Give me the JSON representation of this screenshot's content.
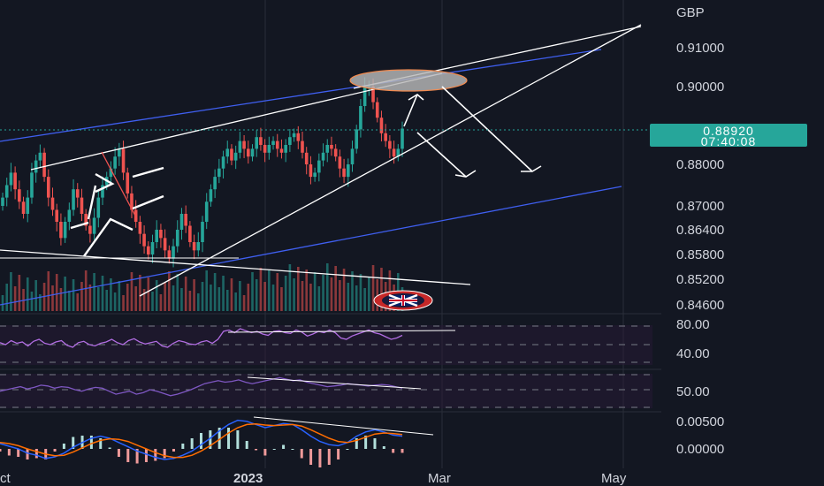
{
  "chart_data": [
    {
      "type": "candlestick",
      "panel": "price",
      "currency": "GBP",
      "y_ticks": [
        0.91,
        0.9,
        0.88,
        0.87,
        0.864,
        0.858,
        0.852,
        0.846
      ],
      "y_tick_labels": [
        "0.91000",
        "0.90000",
        "0.88000",
        "0.87000",
        "0.86400",
        "0.85800",
        "0.85200",
        "0.84600"
      ],
      "last_price": "0.88920",
      "countdown": "07:40:08",
      "x_tick_labels": [
        "ct",
        "2023",
        "Mar",
        "May"
      ],
      "colors": {
        "up": "#26a69a",
        "down": "#ef5350",
        "trendline": "#ffffff",
        "channel": "#3f5ff0",
        "target_zone": "#b8b8b8",
        "target_border": "#f08a50"
      },
      "close_path": [
        0.872,
        0.875,
        0.878,
        0.874,
        0.871,
        0.868,
        0.872,
        0.878,
        0.881,
        0.883,
        0.877,
        0.872,
        0.869,
        0.866,
        0.862,
        0.866,
        0.869,
        0.874,
        0.872,
        0.868,
        0.865,
        0.863,
        0.867,
        0.872,
        0.875,
        0.877,
        0.879,
        0.882,
        0.884,
        0.878,
        0.873,
        0.869,
        0.866,
        0.863,
        0.86,
        0.858,
        0.861,
        0.864,
        0.862,
        0.859,
        0.857,
        0.86,
        0.864,
        0.868,
        0.865,
        0.861,
        0.859,
        0.861,
        0.866,
        0.871,
        0.874,
        0.877,
        0.879,
        0.882,
        0.884,
        0.881,
        0.883,
        0.886,
        0.884,
        0.882,
        0.884,
        0.887,
        0.885,
        0.883,
        0.885,
        0.886,
        0.884,
        0.883,
        0.885,
        0.887,
        0.888,
        0.886,
        0.883,
        0.88,
        0.877,
        0.878,
        0.881,
        0.883,
        0.885,
        0.884,
        0.882,
        0.879,
        0.877,
        0.88,
        0.884,
        0.889,
        0.895,
        0.9,
        0.9,
        0.896,
        0.892,
        0.888,
        0.886,
        0.884,
        0.882,
        0.884,
        0.8892
      ]
    },
    {
      "type": "line",
      "panel": "oscillator-1",
      "y_ticks": [
        80,
        40
      ],
      "y_tick_labels": [
        "80.00",
        "40.00"
      ],
      "values": [
        55,
        52,
        58,
        54,
        56,
        50,
        57,
        60,
        54,
        52,
        56,
        58,
        51,
        48,
        55,
        57,
        52,
        50,
        54,
        56,
        60,
        55,
        52,
        58,
        61,
        56,
        53,
        55,
        57,
        50,
        48,
        54,
        58,
        56,
        53,
        52,
        56,
        58,
        54,
        60,
        72,
        74,
        70,
        76,
        73,
        70,
        72,
        68,
        66,
        72,
        73,
        70,
        69,
        74,
        71,
        65,
        68,
        72,
        70,
        74,
        70,
        62,
        60,
        65,
        68,
        71,
        74,
        70,
        68,
        64,
        60,
        62,
        66
      ]
    },
    {
      "type": "line",
      "panel": "oscillator-2",
      "y_ticks": [
        50
      ],
      "y_tick_labels": [
        "50.00"
      ],
      "values": [
        48,
        50,
        52,
        54,
        51,
        53,
        56,
        55,
        52,
        54,
        53,
        50,
        48,
        51,
        53,
        52,
        48,
        44,
        46,
        48,
        44,
        46,
        50,
        48,
        45,
        42,
        44,
        47,
        50,
        54,
        58,
        60,
        62,
        60,
        61,
        63,
        60,
        58,
        60,
        62,
        64,
        66,
        64,
        62,
        63,
        60,
        58,
        56,
        54,
        55,
        56,
        58,
        57,
        56,
        55,
        56,
        57,
        56,
        54,
        52
      ]
    },
    {
      "type": "line",
      "panel": "oscillator-3",
      "y_ticks": [
        0.005,
        0.0
      ],
      "y_tick_labels": [
        "0.00500",
        "0.00000"
      ],
      "series": [
        {
          "color": "#2962ff",
          "values": [
            0.001,
            0.0005,
            0.0,
            -0.0008,
            -0.0012,
            -0.0018,
            -0.0015,
            -0.0008,
            0.0003,
            0.0012,
            0.002,
            0.0024,
            0.002,
            0.0012,
            0.0004,
            -0.0004,
            -0.001,
            -0.0016,
            -0.002,
            -0.0018,
            -0.0012,
            -0.0004,
            0.0008,
            0.002,
            0.0034,
            0.0046,
            0.0054,
            0.0052,
            0.0046,
            0.004,
            0.0044,
            0.0048,
            0.0046,
            0.0036,
            0.0024,
            0.0014,
            0.0008,
            0.0006,
            0.0012,
            0.0024,
            0.0032,
            0.0036,
            0.0032,
            0.0026,
            0.0024
          ]
        },
        {
          "color": "#ff6d00",
          "values": [
            0.0012,
            0.001,
            0.0006,
            0.0,
            -0.0005,
            -0.001,
            -0.0013,
            -0.0012,
            -0.0006,
            0.0002,
            0.001,
            0.0016,
            0.0019,
            0.0018,
            0.0014,
            0.0007,
            0.0,
            -0.0007,
            -0.0013,
            -0.0016,
            -0.0016,
            -0.0012,
            -0.0004,
            0.0006,
            0.0018,
            0.003,
            0.004,
            0.0046,
            0.0047,
            0.0045,
            0.0044,
            0.0045,
            0.0046,
            0.0043,
            0.0036,
            0.0028,
            0.002,
            0.0014,
            0.0012,
            0.0016,
            0.0022,
            0.0028,
            0.003,
            0.0029,
            0.0027
          ]
        }
      ]
    }
  ]
}
